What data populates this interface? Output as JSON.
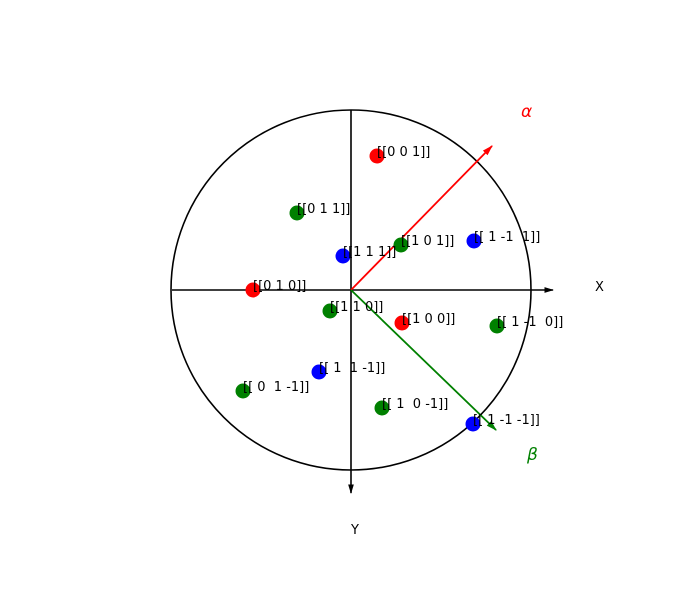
{
  "axes": {
    "x_label": "X",
    "y_label": "Y"
  },
  "vectors": [
    {
      "name": "alpha",
      "label": "α",
      "color": "#ff0000"
    },
    {
      "name": "beta",
      "label": "β",
      "color": "#008000"
    }
  ],
  "colors": {
    "red": "#ff0000",
    "green": "#008000",
    "blue": "#0000ff",
    "line": "#000000"
  },
  "points": [
    {
      "label": "[[0 0 1]]",
      "color": "#ff0000"
    },
    {
      "label": "[[0 1 1]]",
      "color": "#008000"
    },
    {
      "label": "[[1 0 1]]",
      "color": "#008000"
    },
    {
      "label": "[[ 1 -1  1]]",
      "color": "#0000ff"
    },
    {
      "label": "[[1 1 1]]",
      "color": "#0000ff"
    },
    {
      "label": "[[0 1 0]]",
      "color": "#ff0000"
    },
    {
      "label": "[[1 1 0]]",
      "color": "#008000"
    },
    {
      "label": "[[1 0 0]]",
      "color": "#ff0000"
    },
    {
      "label": "[[ 1 -1  0]]",
      "color": "#008000"
    },
    {
      "label": "[[ 1  1 -1]]",
      "color": "#0000ff"
    },
    {
      "label": "[[ 0  1 -1]]",
      "color": "#008000"
    },
    {
      "label": "[[ 1  0 -1]]",
      "color": "#008000"
    },
    {
      "label": "[[ 1 -1 -1]]",
      "color": "#0000ff"
    }
  ]
}
